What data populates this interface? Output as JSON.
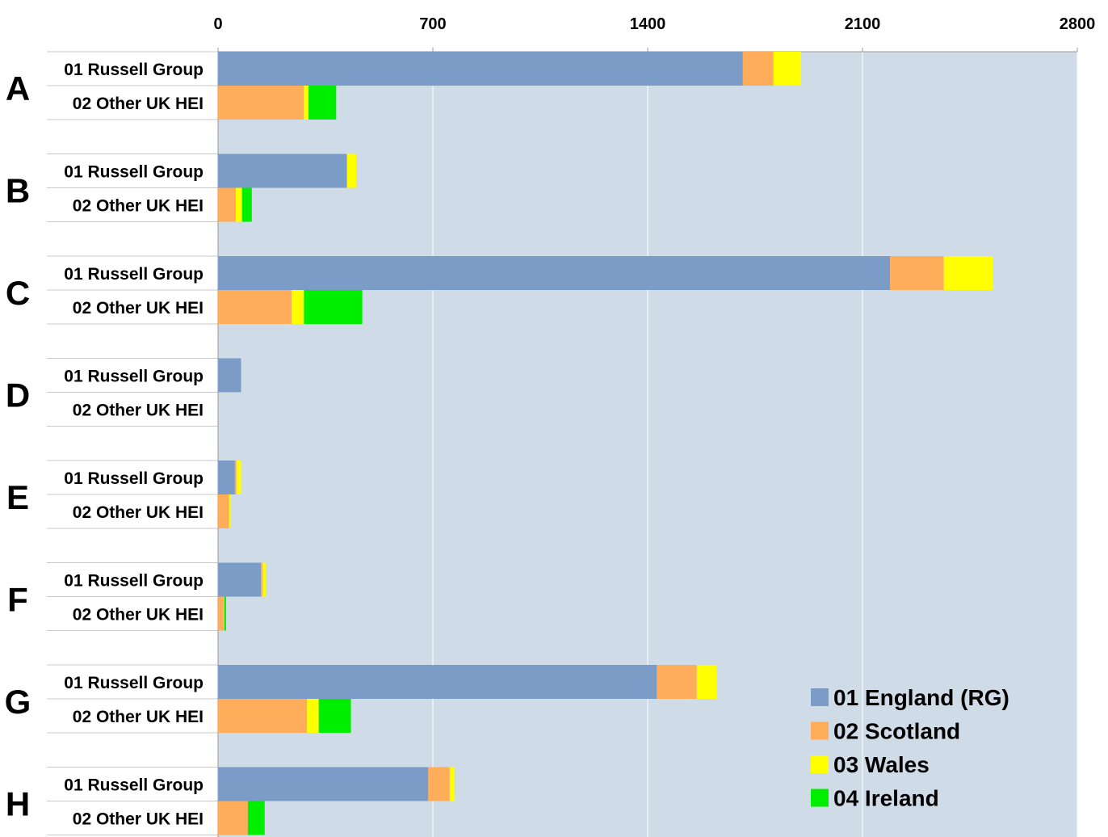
{
  "chart_data": {
    "type": "bar",
    "orientation": "horizontal",
    "stacked": true,
    "title": "",
    "xlabel": "",
    "ylabel": "",
    "xlim": [
      0,
      2800
    ],
    "xticks": [
      "0",
      "700",
      "1400",
      "2100",
      "2800"
    ],
    "x_axis_position": "top",
    "grid": "vertical",
    "legend_position": "bottom-right",
    "groups": [
      {
        "label": "A",
        "rows": [
          {
            "label": "01 Russell Group",
            "values": [
              1710,
              100,
              90,
              0
            ]
          },
          {
            "label": "02 Other UK HEI",
            "values": [
              0,
              280,
              15,
              90
            ]
          }
        ]
      },
      {
        "label": "B",
        "rows": [
          {
            "label": "01 Russell Group",
            "values": [
              420,
              0,
              30,
              0
            ]
          },
          {
            "label": "02 Other UK HEI",
            "values": [
              0,
              58,
              20,
              32
            ]
          }
        ]
      },
      {
        "label": "C",
        "rows": [
          {
            "label": "01 Russell Group",
            "values": [
              2190,
              175,
              160,
              0
            ]
          },
          {
            "label": "02 Other UK HEI",
            "values": [
              0,
              240,
              40,
              190
            ]
          }
        ]
      },
      {
        "label": "D",
        "rows": [
          {
            "label": "01 Russell Group",
            "values": [
              75,
              0,
              0,
              0
            ]
          },
          {
            "label": "02 Other UK HEI",
            "values": [
              0,
              0,
              0,
              0
            ]
          }
        ]
      },
      {
        "label": "E",
        "rows": [
          {
            "label": "01 Russell Group",
            "values": [
              55,
              5,
              15,
              0
            ]
          },
          {
            "label": "02 Other UK HEI",
            "values": [
              0,
              36,
              4,
              0
            ]
          }
        ]
      },
      {
        "label": "F",
        "rows": [
          {
            "label": "01 Russell Group",
            "values": [
              140,
              5,
              10,
              0
            ]
          },
          {
            "label": "02 Other UK HEI",
            "values": [
              0,
              18,
              2,
              6
            ]
          }
        ]
      },
      {
        "label": "G",
        "rows": [
          {
            "label": "01 Russell Group",
            "values": [
              1430,
              130,
              65,
              0
            ]
          },
          {
            "label": "02 Other UK HEI",
            "values": [
              0,
              290,
              38,
              105
            ]
          }
        ]
      },
      {
        "label": "H",
        "rows": [
          {
            "label": "01 Russell Group",
            "values": [
              685,
              70,
              15,
              0
            ]
          },
          {
            "label": "02 Other UK HEI",
            "values": [
              0,
              97,
              0,
              55
            ]
          }
        ]
      }
    ],
    "series": [
      {
        "name": "01 England (RG)",
        "color": "#7a9cc6"
      },
      {
        "name": "02 Scotland",
        "color": "#ffad5b"
      },
      {
        "name": "03 Wales",
        "color": "#ffff00"
      },
      {
        "name": "04 Ireland",
        "color": "#00ee00"
      }
    ],
    "plot_background": "#cfdbe7"
  }
}
